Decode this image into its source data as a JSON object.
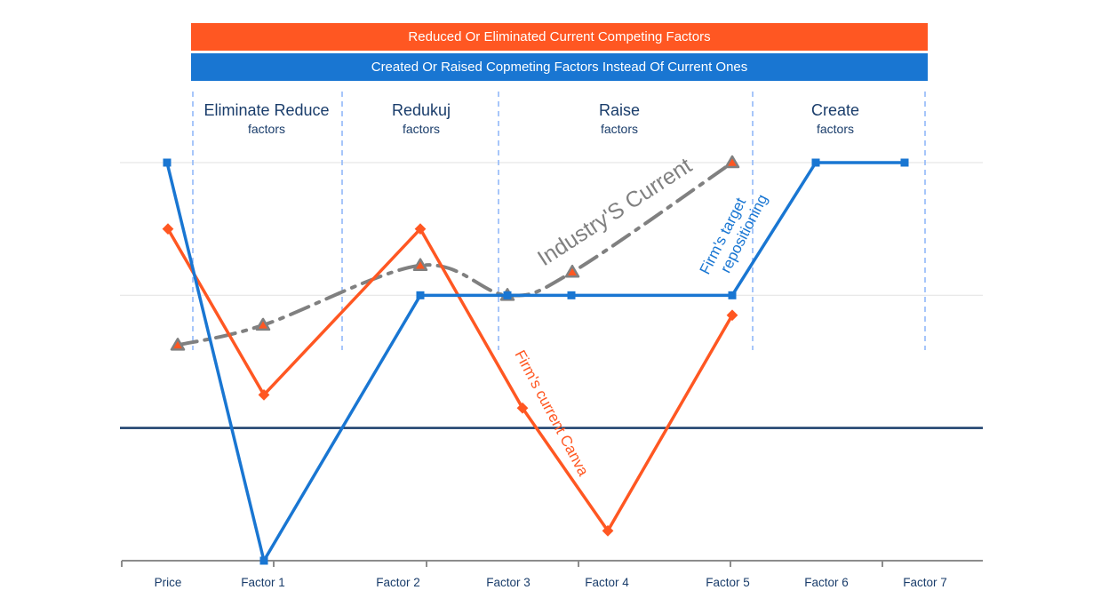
{
  "banners": {
    "top": "Reduced Or Eliminated Current Competing Factors",
    "bottom": "Created Or Raised Copmeting Factors Instead Of Current Ones"
  },
  "categories": [
    {
      "title": "Eliminate Reduce",
      "subtitle": "factors"
    },
    {
      "title": "Redukuj",
      "subtitle": "factors"
    },
    {
      "title": "Raise",
      "subtitle": "factors"
    },
    {
      "title": "Create",
      "subtitle": "factors"
    }
  ],
  "colors": {
    "orange": "#ff5722",
    "blue": "#1976d2",
    "grey": "#808080",
    "navy": "#1a3d6b",
    "divider": "#8ab4f8"
  },
  "chart_data": {
    "type": "line",
    "title": "",
    "xlabel": "",
    "ylabel": "",
    "x": [
      "Price",
      "Factor 1",
      "Factor 2",
      "Factor 3",
      "Factor 4",
      "Factor 5",
      "Factor 6",
      "Factor 7"
    ],
    "ylim": [
      0,
      6
    ],
    "grid": true,
    "reference_line": 2,
    "series": [
      {
        "name": "Firm's target repositioning",
        "color": "#1976d2",
        "marker": "square",
        "values": [
          6,
          0,
          4,
          4,
          4,
          4,
          6,
          6
        ]
      },
      {
        "name": "Firm's current Canva",
        "color": "#ff5722",
        "marker": "diamond",
        "values": [
          5,
          2.5,
          5,
          2.3,
          0.45,
          3.7,
          null,
          null
        ]
      },
      {
        "name": "Industry'S Current",
        "color": "#808080",
        "marker": "triangle",
        "style": "dash-dot",
        "values": [
          3.25,
          3.55,
          4.45,
          4.0,
          4.35,
          6,
          null,
          null
        ]
      }
    ],
    "annotations": [
      "Industry'S Current",
      "Firm's target repositioning",
      "Firm's current Canva"
    ]
  }
}
